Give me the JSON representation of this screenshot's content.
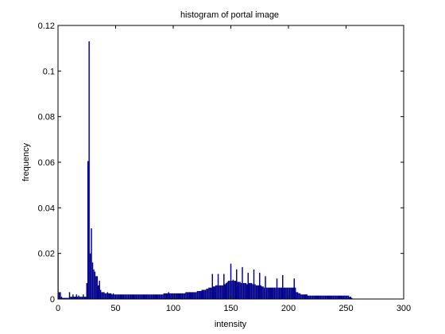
{
  "chart_data": {
    "type": "bar",
    "title": "histogram of portal image",
    "xlabel": "intensity",
    "ylabel": "frequency",
    "xlim": [
      0,
      300
    ],
    "ylim": [
      0,
      0.12
    ],
    "xticks": [
      0,
      50,
      100,
      150,
      200,
      250,
      300
    ],
    "yticks": [
      0,
      0.02,
      0.04,
      0.06,
      0.08,
      0.1,
      0.12
    ],
    "xtick_labels": [
      "0",
      "50",
      "100",
      "150",
      "200",
      "250",
      "300"
    ],
    "ytick_labels": [
      "0",
      "0.02",
      "0.04",
      "0.06",
      "0.08",
      "0.1",
      "0.12"
    ],
    "grid": false,
    "bar_color": "#00008b",
    "bins": [
      [
        0,
        0.02
      ],
      [
        1,
        0.003
      ],
      [
        2,
        0.003
      ],
      [
        3,
        0.001
      ],
      [
        4,
        0.0005
      ],
      [
        5,
        0.0005
      ],
      [
        6,
        0.0005
      ],
      [
        7,
        0.0005
      ],
      [
        8,
        0.0005
      ],
      [
        9,
        0.0005
      ],
      [
        10,
        0.003
      ],
      [
        11,
        0.001
      ],
      [
        12,
        0.001
      ],
      [
        13,
        0.002
      ],
      [
        14,
        0.001
      ],
      [
        15,
        0.001
      ],
      [
        16,
        0.002
      ],
      [
        17,
        0.001
      ],
      [
        18,
        0.0015
      ],
      [
        19,
        0.001
      ],
      [
        20,
        0.001
      ],
      [
        21,
        0.001
      ],
      [
        22,
        0.002
      ],
      [
        23,
        0.001
      ],
      [
        24,
        0.001
      ],
      [
        25,
        0.007
      ],
      [
        26,
        0.0605
      ],
      [
        27,
        0.113
      ],
      [
        28,
        0.02
      ],
      [
        29,
        0.031
      ],
      [
        30,
        0.016
      ],
      [
        31,
        0.013
      ],
      [
        32,
        0.012
      ],
      [
        33,
        0.01
      ],
      [
        34,
        0.01
      ],
      [
        35,
        0.006
      ],
      [
        36,
        0.008
      ],
      [
        37,
        0.004
      ],
      [
        38,
        0.003
      ],
      [
        39,
        0.003
      ],
      [
        40,
        0.003
      ],
      [
        41,
        0.0025
      ],
      [
        42,
        0.0025
      ],
      [
        43,
        0.003
      ],
      [
        44,
        0.0025
      ],
      [
        45,
        0.0025
      ],
      [
        46,
        0.0025
      ],
      [
        47,
        0.002
      ],
      [
        48,
        0.0025
      ],
      [
        49,
        0.002
      ],
      [
        50,
        0.002
      ],
      [
        51,
        0.002
      ],
      [
        52,
        0.002
      ],
      [
        53,
        0.002
      ],
      [
        54,
        0.002
      ],
      [
        55,
        0.002
      ],
      [
        56,
        0.002
      ],
      [
        57,
        0.002
      ],
      [
        58,
        0.002
      ],
      [
        59,
        0.002
      ],
      [
        60,
        0.002
      ],
      [
        61,
        0.002
      ],
      [
        62,
        0.002
      ],
      [
        63,
        0.002
      ],
      [
        64,
        0.002
      ],
      [
        65,
        0.002
      ],
      [
        66,
        0.002
      ],
      [
        67,
        0.002
      ],
      [
        68,
        0.002
      ],
      [
        69,
        0.002
      ],
      [
        70,
        0.002
      ],
      [
        71,
        0.002
      ],
      [
        72,
        0.002
      ],
      [
        73,
        0.002
      ],
      [
        74,
        0.002
      ],
      [
        75,
        0.002
      ],
      [
        76,
        0.002
      ],
      [
        77,
        0.002
      ],
      [
        78,
        0.002
      ],
      [
        79,
        0.002
      ],
      [
        80,
        0.002
      ],
      [
        81,
        0.002
      ],
      [
        82,
        0.002
      ],
      [
        83,
        0.002
      ],
      [
        84,
        0.002
      ],
      [
        85,
        0.002
      ],
      [
        86,
        0.002
      ],
      [
        87,
        0.002
      ],
      [
        88,
        0.002
      ],
      [
        89,
        0.002
      ],
      [
        90,
        0.002
      ],
      [
        91,
        0.002
      ],
      [
        92,
        0.0025
      ],
      [
        93,
        0.0025
      ],
      [
        94,
        0.0025
      ],
      [
        95,
        0.0025
      ],
      [
        96,
        0.003
      ],
      [
        97,
        0.0025
      ],
      [
        98,
        0.0025
      ],
      [
        99,
        0.0025
      ],
      [
        100,
        0.0025
      ],
      [
        101,
        0.0025
      ],
      [
        102,
        0.0025
      ],
      [
        103,
        0.0025
      ],
      [
        104,
        0.0025
      ],
      [
        105,
        0.0025
      ],
      [
        106,
        0.0025
      ],
      [
        107,
        0.0025
      ],
      [
        108,
        0.0025
      ],
      [
        109,
        0.0025
      ],
      [
        110,
        0.0025
      ],
      [
        111,
        0.003
      ],
      [
        112,
        0.003
      ],
      [
        113,
        0.003
      ],
      [
        114,
        0.003
      ],
      [
        115,
        0.003
      ],
      [
        116,
        0.003
      ],
      [
        117,
        0.003
      ],
      [
        118,
        0.003
      ],
      [
        119,
        0.003
      ],
      [
        120,
        0.003
      ],
      [
        121,
        0.0035
      ],
      [
        122,
        0.0035
      ],
      [
        123,
        0.0035
      ],
      [
        124,
        0.0035
      ],
      [
        125,
        0.004
      ],
      [
        126,
        0.004
      ],
      [
        127,
        0.004
      ],
      [
        128,
        0.004
      ],
      [
        129,
        0.0045
      ],
      [
        130,
        0.0045
      ],
      [
        131,
        0.005
      ],
      [
        132,
        0.005
      ],
      [
        133,
        0.005
      ],
      [
        134,
        0.011
      ],
      [
        135,
        0.0055
      ],
      [
        136,
        0.0055
      ],
      [
        137,
        0.006
      ],
      [
        138,
        0.006
      ],
      [
        139,
        0.011
      ],
      [
        140,
        0.006
      ],
      [
        141,
        0.006
      ],
      [
        142,
        0.006
      ],
      [
        143,
        0.006
      ],
      [
        144,
        0.011
      ],
      [
        145,
        0.0065
      ],
      [
        146,
        0.007
      ],
      [
        147,
        0.0075
      ],
      [
        148,
        0.008
      ],
      [
        149,
        0.008
      ],
      [
        150,
        0.0155
      ],
      [
        151,
        0.008
      ],
      [
        152,
        0.0085
      ],
      [
        153,
        0.008
      ],
      [
        154,
        0.008
      ],
      [
        155,
        0.013
      ],
      [
        156,
        0.0075
      ],
      [
        157,
        0.0075
      ],
      [
        158,
        0.0075
      ],
      [
        159,
        0.007
      ],
      [
        160,
        0.014
      ],
      [
        161,
        0.007
      ],
      [
        162,
        0.007
      ],
      [
        163,
        0.007
      ],
      [
        164,
        0.0065
      ],
      [
        165,
        0.0115
      ],
      [
        166,
        0.007
      ],
      [
        167,
        0.007
      ],
      [
        168,
        0.007
      ],
      [
        169,
        0.0065
      ],
      [
        170,
        0.013
      ],
      [
        171,
        0.0065
      ],
      [
        172,
        0.006
      ],
      [
        173,
        0.006
      ],
      [
        174,
        0.006
      ],
      [
        175,
        0.0115
      ],
      [
        176,
        0.006
      ],
      [
        177,
        0.0055
      ],
      [
        178,
        0.0055
      ],
      [
        179,
        0.005
      ],
      [
        180,
        0.01
      ],
      [
        181,
        0.005
      ],
      [
        182,
        0.005
      ],
      [
        183,
        0.005
      ],
      [
        184,
        0.005
      ],
      [
        185,
        0.005
      ],
      [
        186,
        0.005
      ],
      [
        187,
        0.005
      ],
      [
        188,
        0.005
      ],
      [
        189,
        0.005
      ],
      [
        190,
        0.009
      ],
      [
        191,
        0.005
      ],
      [
        192,
        0.005
      ],
      [
        193,
        0.005
      ],
      [
        194,
        0.005
      ],
      [
        195,
        0.0105
      ],
      [
        196,
        0.005
      ],
      [
        197,
        0.005
      ],
      [
        198,
        0.005
      ],
      [
        199,
        0.005
      ],
      [
        200,
        0.005
      ],
      [
        201,
        0.005
      ],
      [
        202,
        0.005
      ],
      [
        203,
        0.005
      ],
      [
        204,
        0.005
      ],
      [
        205,
        0.009
      ],
      [
        206,
        0.005
      ],
      [
        207,
        0.003
      ],
      [
        208,
        0.003
      ],
      [
        209,
        0.0025
      ],
      [
        210,
        0.0025
      ],
      [
        211,
        0.002
      ],
      [
        212,
        0.002
      ],
      [
        213,
        0.002
      ],
      [
        214,
        0.002
      ],
      [
        215,
        0.002
      ],
      [
        216,
        0.002
      ],
      [
        217,
        0.0015
      ],
      [
        218,
        0.0015
      ],
      [
        219,
        0.0015
      ],
      [
        220,
        0.0015
      ],
      [
        221,
        0.0015
      ],
      [
        222,
        0.0015
      ],
      [
        223,
        0.0015
      ],
      [
        224,
        0.0015
      ],
      [
        225,
        0.0015
      ],
      [
        226,
        0.0015
      ],
      [
        227,
        0.0015
      ],
      [
        228,
        0.0015
      ],
      [
        229,
        0.0015
      ],
      [
        230,
        0.0015
      ],
      [
        231,
        0.0015
      ],
      [
        232,
        0.0015
      ],
      [
        233,
        0.0015
      ],
      [
        234,
        0.0015
      ],
      [
        235,
        0.0015
      ],
      [
        236,
        0.0015
      ],
      [
        237,
        0.0015
      ],
      [
        238,
        0.0015
      ],
      [
        239,
        0.0015
      ],
      [
        240,
        0.0015
      ],
      [
        241,
        0.0015
      ],
      [
        242,
        0.0015
      ],
      [
        243,
        0.0015
      ],
      [
        244,
        0.0015
      ],
      [
        245,
        0.0015
      ],
      [
        246,
        0.0015
      ],
      [
        247,
        0.0015
      ],
      [
        248,
        0.0015
      ],
      [
        249,
        0.0015
      ],
      [
        250,
        0.0015
      ],
      [
        251,
        0.0015
      ],
      [
        252,
        0.0015
      ],
      [
        253,
        0.001
      ],
      [
        254,
        0.001
      ],
      [
        255,
        0.0005
      ]
    ]
  }
}
